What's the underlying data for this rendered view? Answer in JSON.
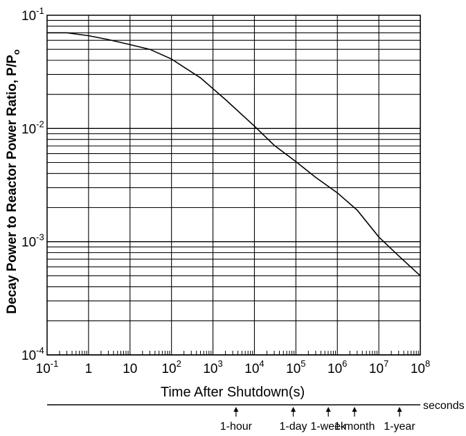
{
  "chart_data": {
    "type": "line",
    "x_scale": "log",
    "y_scale": "log",
    "xlim": [
      0.1,
      100000000
    ],
    "ylim": [
      0.0001,
      0.1
    ],
    "grid": true,
    "xlabel": "Time After Shutdown(s)",
    "ylabel": "Decay Power to Reactor Power Ratio, P/P",
    "ylabel_subscript": "o",
    "x_ticks": [
      {
        "value": 0.1,
        "base": "10",
        "exp": "-1"
      },
      {
        "value": 1,
        "base": "1",
        "exp": ""
      },
      {
        "value": 10,
        "base": "10",
        "exp": ""
      },
      {
        "value": 100,
        "base": "10",
        "exp": "2"
      },
      {
        "value": 1000,
        "base": "10",
        "exp": "3"
      },
      {
        "value": 10000,
        "base": "10",
        "exp": "4"
      },
      {
        "value": 100000,
        "base": "10",
        "exp": "5"
      },
      {
        "value": 1000000,
        "base": "10",
        "exp": "6"
      },
      {
        "value": 10000000,
        "base": "10",
        "exp": "7"
      },
      {
        "value": 100000000,
        "base": "10",
        "exp": "8"
      }
    ],
    "y_ticks": [
      {
        "value": 0.1,
        "base": "10",
        "exp": "-1"
      },
      {
        "value": 0.01,
        "base": "10",
        "exp": "-2"
      },
      {
        "value": 0.001,
        "base": "10",
        "exp": "-3"
      },
      {
        "value": 0.0001,
        "base": "10",
        "exp": "-4"
      }
    ],
    "series": [
      {
        "x": [
          0.1,
          0.3,
          1,
          3,
          10,
          30,
          100,
          500,
          2000,
          10000,
          30000,
          100000,
          300000,
          1000000,
          3000000,
          10000000,
          30000000,
          100000000
        ],
        "y": [
          0.07,
          0.07,
          0.066,
          0.061,
          0.055,
          0.05,
          0.041,
          0.028,
          0.018,
          0.0105,
          0.0071,
          0.0051,
          0.0037,
          0.0027,
          0.0019,
          0.0011,
          0.00075,
          0.0005
        ]
      }
    ],
    "timeline": {
      "unit_label": "seconds",
      "markers": [
        {
          "label": "1-hour",
          "value": 3600
        },
        {
          "label": "1-day",
          "value": 86400
        },
        {
          "label": "1-week",
          "value": 604800
        },
        {
          "label": "1-month",
          "value": 2592000
        },
        {
          "label": "1-year",
          "value": 31536000
        }
      ]
    },
    "colors": {
      "line": "#000000",
      "grid": "#000000",
      "background": "#ffffff"
    }
  }
}
